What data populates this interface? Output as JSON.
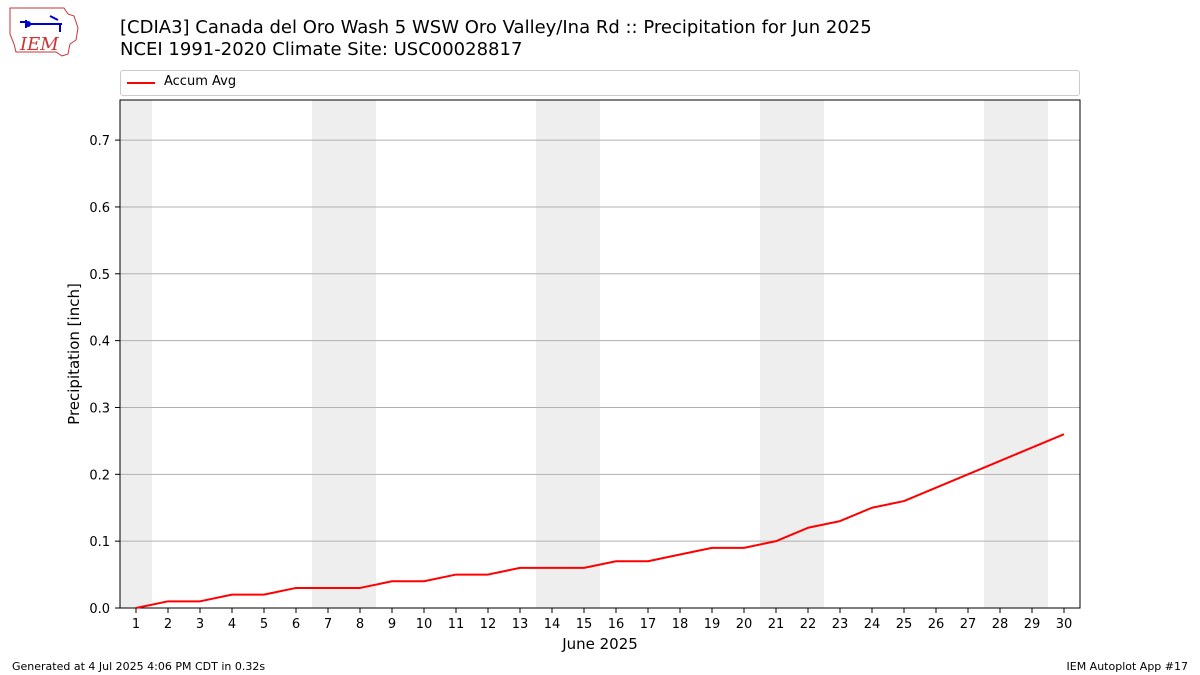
{
  "title": {
    "line1": "[CDIA3] Canada del Oro Wash 5 WSW Oro Valley/Ina Rd :: Precipitation for Jun 2025",
    "line2": "NCEI 1991-2020 Climate Site: USC00028817"
  },
  "logo": {
    "text": "IEM"
  },
  "footer": {
    "left": "Generated at 4 Jul 2025 4:06 PM CDT in 0.32s",
    "right": "IEM Autoplot App #17"
  },
  "colors": {
    "line": "#ff0000",
    "weekend_band": "#eeeeee",
    "grid": "#b0b0b0"
  },
  "chart_data": {
    "type": "line",
    "xlabel": "June 2025",
    "ylabel": "Precipitation [inch]",
    "ylim": [
      0,
      0.76
    ],
    "xlim": [
      0.5,
      30.5
    ],
    "yticks": [
      0.0,
      0.1,
      0.2,
      0.3,
      0.4,
      0.5,
      0.6,
      0.7
    ],
    "ytick_labels": [
      "0.0",
      "0.1",
      "0.2",
      "0.3",
      "0.4",
      "0.5",
      "0.6",
      "0.7"
    ],
    "x": [
      1,
      2,
      3,
      4,
      5,
      6,
      7,
      8,
      9,
      10,
      11,
      12,
      13,
      14,
      15,
      16,
      17,
      18,
      19,
      20,
      21,
      22,
      23,
      24,
      25,
      26,
      27,
      28,
      29,
      30
    ],
    "xtick_labels": [
      "1",
      "2",
      "3",
      "4",
      "5",
      "6",
      "7",
      "8",
      "9",
      "10",
      "11",
      "12",
      "13",
      "14",
      "15",
      "16",
      "17",
      "18",
      "19",
      "20",
      "21",
      "22",
      "23",
      "24",
      "25",
      "26",
      "27",
      "28",
      "29",
      "30"
    ],
    "grid": "horizontal",
    "legend": {
      "position": "top",
      "entries": [
        "Accum Avg"
      ]
    },
    "shaded_day_ranges": [
      [
        0.5,
        1.5
      ],
      [
        6.5,
        8.5
      ],
      [
        13.5,
        15.5
      ],
      [
        20.5,
        22.5
      ],
      [
        27.5,
        29.5
      ]
    ],
    "series": [
      {
        "name": "Accum Avg",
        "values": [
          0.0,
          0.01,
          0.01,
          0.02,
          0.02,
          0.03,
          0.03,
          0.03,
          0.04,
          0.04,
          0.05,
          0.05,
          0.06,
          0.06,
          0.06,
          0.07,
          0.07,
          0.08,
          0.09,
          0.09,
          0.1,
          0.12,
          0.13,
          0.15,
          0.16,
          0.18,
          0.2,
          0.22,
          0.24,
          0.26
        ]
      }
    ]
  }
}
